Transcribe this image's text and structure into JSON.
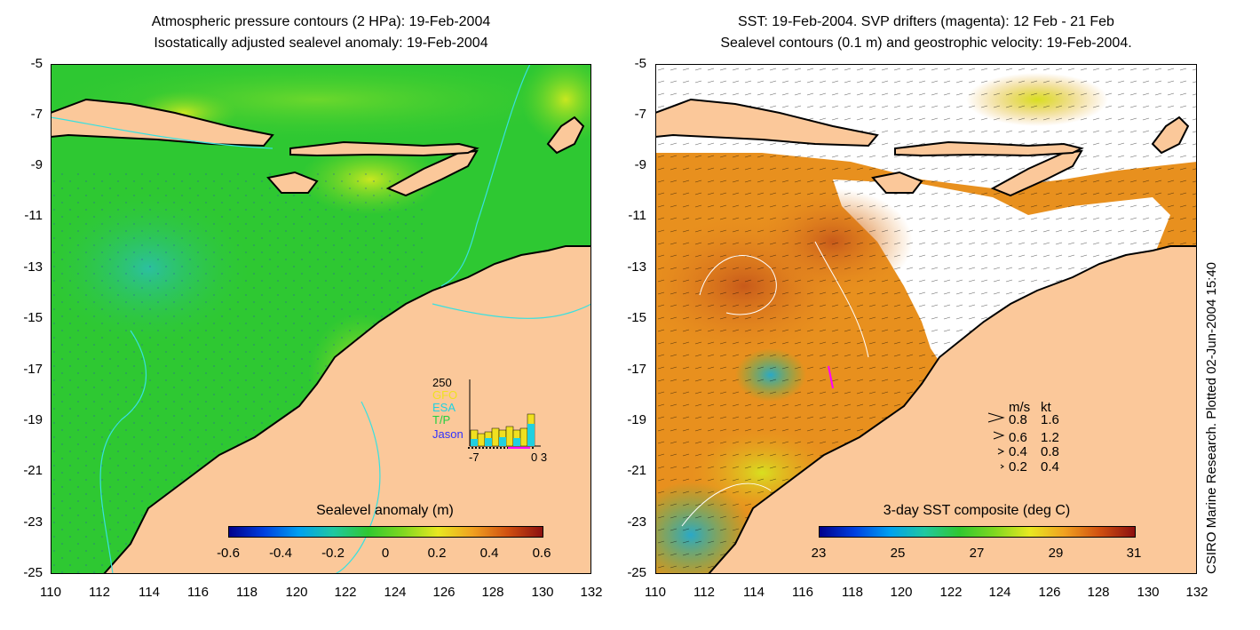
{
  "left_panel": {
    "title_line1": "Atmospheric pressure contours (2 HPa): 19-Feb-2004",
    "title_line2": "Isostatically adjusted sealevel anomaly: 19-Feb-2004",
    "colorbar_title": "Sealevel anomaly (m)",
    "colorbar_ticks": [
      "-0.6",
      "-0.4",
      "-0.2",
      "0",
      "0.2",
      "0.4",
      "0.6"
    ],
    "inset": {
      "ymax_label": "250",
      "sources": [
        "GFO",
        "ESA",
        "T/P",
        "Jason"
      ],
      "x_left": "-7",
      "x_right": "0 3"
    }
  },
  "right_panel": {
    "title_line1": "SST: 19-Feb-2004. SVP drifters (magenta): 12 Feb - 21 Feb",
    "title_line2": "Sealevel contours (0.1 m) and geostrophic velocity: 19-Feb-2004.",
    "colorbar_title": "3-day SST composite (deg C)",
    "colorbar_ticks": [
      "23",
      "25",
      "27",
      "29",
      "31"
    ],
    "velocity_legend": {
      "header_ms": "m/s",
      "header_kt": "kt",
      "rows": [
        {
          "ms": "0.8",
          "kt": "1.6"
        },
        {
          "ms": "0.6",
          "kt": "1.2"
        },
        {
          "ms": "0.4",
          "kt": "0.8"
        },
        {
          "ms": "0.2",
          "kt": "0.4"
        }
      ]
    }
  },
  "axes": {
    "y_ticks": [
      "-5",
      "-7",
      "-9",
      "-11",
      "-13",
      "-15",
      "-17",
      "-19",
      "-21",
      "-23",
      "-25"
    ],
    "x_ticks": [
      "110",
      "112",
      "114",
      "116",
      "118",
      "120",
      "122",
      "124",
      "126",
      "128",
      "130",
      "132"
    ]
  },
  "credit": "CSIRO Marine Research. Plotted 02-Jun-2004 15:40",
  "colors": {
    "land": "#fbc89a",
    "sla_mid": "#2ec832",
    "contour_cyan": "#38e0e0",
    "drifter_magenta": "#ff00ff"
  }
}
